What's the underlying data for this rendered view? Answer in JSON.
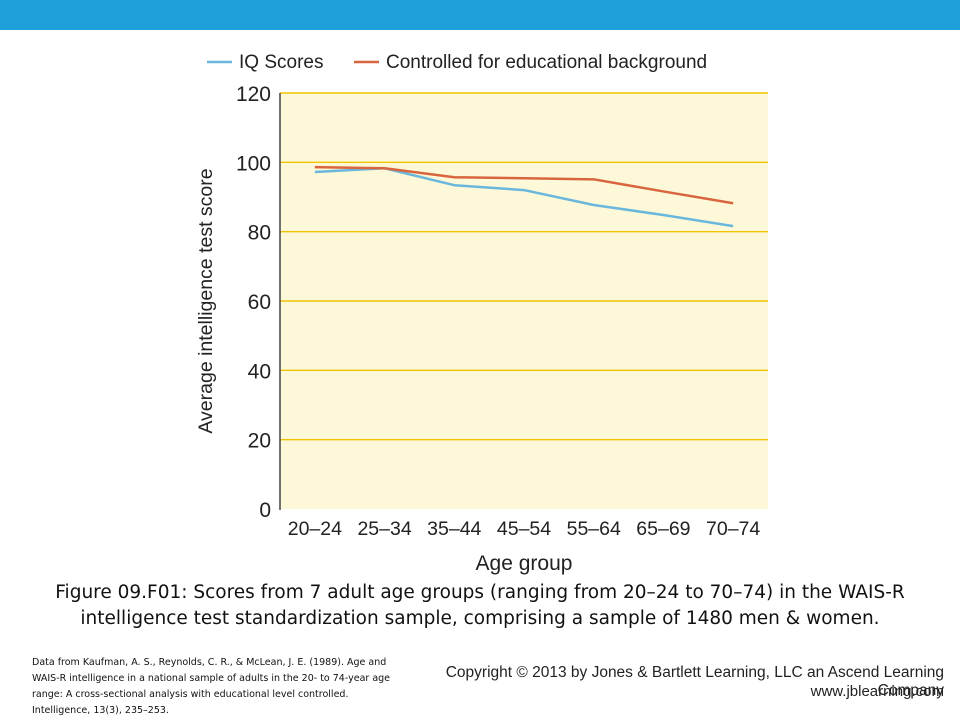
{
  "colors": {
    "top_bar": "#1fa0db",
    "plot_background": "#fdf9d8",
    "gridline": "#f0c400",
    "series_iq": "#6ab7dd",
    "series_controlled": "#d9653e"
  },
  "chart_data": {
    "type": "line",
    "title": "",
    "xlabel": "Age group",
    "ylabel": "Average intelligence test score",
    "categories": [
      "20–24",
      "25–34",
      "35–44",
      "45–54",
      "55–64",
      "65–69",
      "70–74"
    ],
    "yticks": [
      0,
      20,
      40,
      60,
      80,
      100,
      120
    ],
    "ylim": [
      0,
      120
    ],
    "grid": true,
    "legend_position": "top",
    "series": [
      {
        "name": "IQ Scores",
        "color": "#6ab7dd",
        "values": [
          97.2,
          98.3,
          93.4,
          92.0,
          87.7,
          84.8,
          81.6
        ]
      },
      {
        "name": "Controlled for educational background",
        "color": "#d9653e",
        "values": [
          98.6,
          98.3,
          95.7,
          95.4,
          95.1,
          91.6,
          88.2
        ]
      }
    ]
  },
  "caption": "Figure 09.F01: Scores from 7 adult age groups (ranging from 20–24 to 70–74) in the WAIS-R intelligence test standardization sample, comprising a sample of 1480 men & women.",
  "source_note": "Data from Kaufman, A. S., Reynolds, C. R., & McLean, J. E. (1989). Age and WAIS-R intelligence in a national sample of adults in the 20- to 74-year age range: A cross-sectional analysis with educational level controlled. Intelligence, 13(3), 235–253.",
  "copyright": "Copyright © 2013 by Jones & Bartlett Learning, LLC an Ascend Learning Company",
  "website": "www.jblearning.com"
}
